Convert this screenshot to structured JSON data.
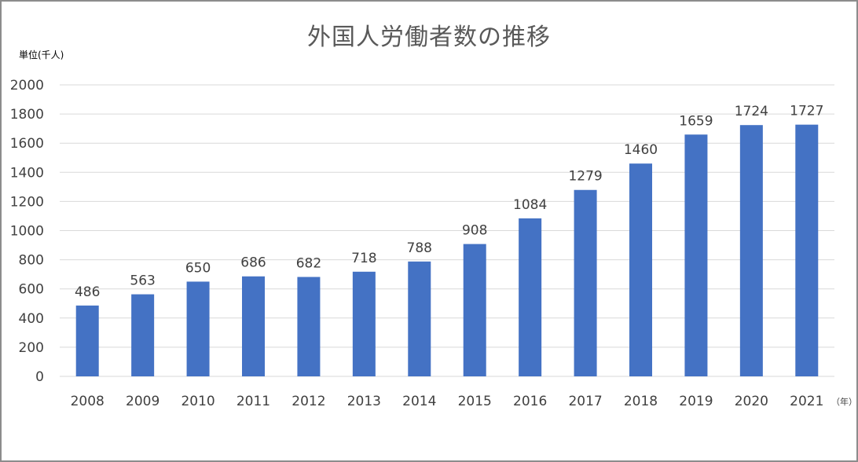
{
  "chart_data": {
    "type": "bar",
    "title": "外国人労働者数の推移",
    "unit_label": "単位(千人)",
    "x_unit_label": "（年）",
    "categories": [
      "2008",
      "2009",
      "2010",
      "2011",
      "2012",
      "2013",
      "2014",
      "2015",
      "2016",
      "2017",
      "2018",
      "2019",
      "2020",
      "2021"
    ],
    "values": [
      486,
      563,
      650,
      686,
      682,
      718,
      788,
      908,
      1084,
      1279,
      1460,
      1659,
      1724,
      1727
    ],
    "ylim": [
      0,
      2000
    ],
    "y_ticks": [
      0,
      200,
      400,
      600,
      800,
      1000,
      1200,
      1400,
      1600,
      1800,
      2000
    ],
    "grid": true,
    "legend": "none",
    "colors": {
      "bar": "#4472c4",
      "grid": "#d9d9d9",
      "title": "#595959",
      "tick_text": "#404040",
      "data_label": "#404040"
    }
  }
}
